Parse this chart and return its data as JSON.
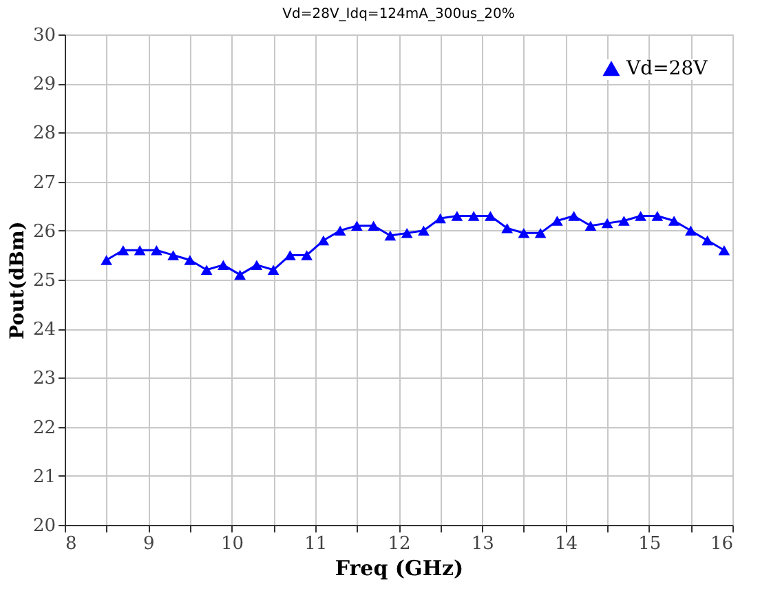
{
  "chart_data": {
    "type": "line",
    "title": "Vd=28V_Idq=124mA_300us_20%",
    "xlabel": "Freq (GHz)",
    "ylabel": "Pout(dBm)",
    "x": [
      8.5,
      8.7,
      8.9,
      9.1,
      9.3,
      9.5,
      9.7,
      9.9,
      10.1,
      10.3,
      10.5,
      10.7,
      10.9,
      11.1,
      11.3,
      11.5,
      11.7,
      11.9,
      12.1,
      12.3,
      12.5,
      12.7,
      12.9,
      13.1,
      13.3,
      13.5,
      13.7,
      13.9,
      14.1,
      14.3,
      14.5,
      14.7,
      14.9,
      15.1,
      15.3,
      15.5,
      15.7,
      15.9
    ],
    "series": [
      {
        "name": "Vd=28V",
        "color": "#0000ff",
        "values": [
          25.4,
          25.6,
          25.6,
          25.6,
          25.5,
          25.4,
          25.2,
          25.3,
          25.1,
          25.3,
          25.2,
          25.5,
          25.5,
          25.8,
          26.0,
          26.1,
          26.1,
          25.9,
          25.95,
          26.0,
          26.25,
          26.3,
          26.3,
          26.3,
          26.05,
          25.95,
          25.95,
          26.2,
          26.3,
          26.1,
          26.15,
          26.2,
          26.3,
          26.3,
          26.2,
          26.0,
          25.8,
          25.6
        ]
      }
    ],
    "xlim": [
      8,
      16
    ],
    "ylim": [
      20,
      30
    ],
    "xticks": [
      8,
      {
        "value": 8.5,
        "label": null
      },
      9,
      {
        "value": 9.5,
        "label": null
      },
      10,
      {
        "value": 10.5,
        "label": null
      },
      11,
      {
        "value": 11.5,
        "label": null
      },
      12,
      {
        "value": 12.5,
        "label": null
      },
      13,
      {
        "value": 13.5,
        "label": null
      },
      14,
      {
        "value": 14.5,
        "label": null
      },
      15,
      {
        "value": 15.5,
        "label": null
      },
      16
    ],
    "yticks": [
      20,
      21,
      22,
      23,
      24,
      25,
      26,
      27,
      28,
      29,
      30
    ],
    "grid": true,
    "legend": "top right",
    "marker": "triangle",
    "line_style": "solid"
  }
}
